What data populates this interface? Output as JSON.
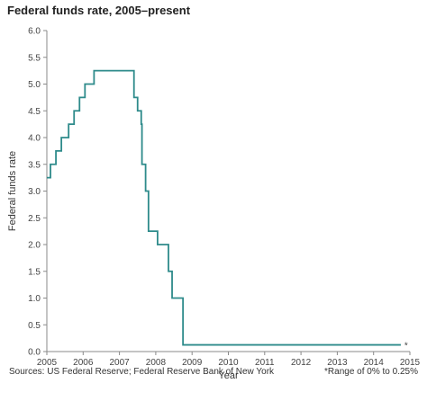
{
  "title": "Federal funds rate, 2005–present",
  "footer": {
    "sources": "Sources: US Federal Reserve; Federal Reserve Bank of New York",
    "note": "*Range of 0% to 0.25%"
  },
  "colors": {
    "line": "#2e8b8b",
    "axis": "#8a8a8a"
  },
  "chart_data": {
    "type": "line",
    "title": "Federal funds rate, 2005–present",
    "xlabel": "Year",
    "ylabel": "Federal funds rate",
    "xlim": [
      2005,
      2015
    ],
    "ylim": [
      0,
      6
    ],
    "x_ticks": [
      "2005",
      "2006",
      "2007",
      "2008",
      "2009",
      "2010",
      "2011",
      "2012",
      "2013",
      "2014",
      "2015"
    ],
    "y_ticks": [
      "0.0",
      "0.5",
      "1.0",
      "1.5",
      "2.0",
      "2.5",
      "3.0",
      "3.5",
      "4.0",
      "4.5",
      "5.0",
      "5.5",
      "6.0"
    ],
    "grid": false,
    "end_marker": "*",
    "series": [
      {
        "step": true,
        "x": [
          2005.0,
          2005.1,
          2005.25,
          2005.4,
          2005.6,
          2005.75,
          2005.9,
          2006.05,
          2006.3,
          2006.5,
          2007.25,
          2007.4,
          2007.5,
          2007.6,
          2007.62,
          2007.72,
          2007.8,
          2008.05,
          2008.3,
          2008.35,
          2008.45,
          2008.75,
          2014.75
        ],
        "y": [
          3.25,
          3.5,
          3.75,
          4.0,
          4.25,
          4.5,
          4.75,
          5.0,
          5.25,
          5.25,
          5.25,
          4.75,
          4.5,
          4.25,
          3.5,
          3.0,
          2.25,
          2.0,
          2.0,
          1.5,
          1.0,
          0.125,
          0.125
        ]
      }
    ]
  }
}
